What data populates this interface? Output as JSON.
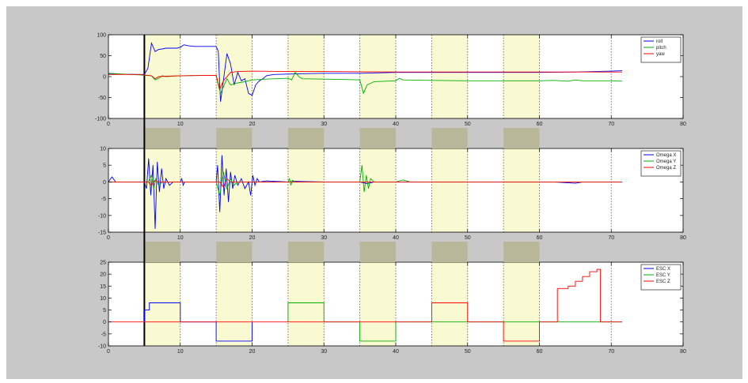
{
  "colors": {
    "figure_bg": "#c8c8c8",
    "axes_bg": "#ffffff",
    "highlight": "#fafad2",
    "blue": "#0000ff",
    "green": "#00b000",
    "red": "#ff0000"
  },
  "chart_data": [
    {
      "type": "line",
      "title": "",
      "xlabel": "",
      "ylabel": "",
      "xlim": [
        0,
        80
      ],
      "ylim": [
        -100,
        100
      ],
      "xticks": [
        0,
        10,
        20,
        30,
        40,
        50,
        60,
        70,
        80
      ],
      "yticks": [
        -100,
        -50,
        0,
        50,
        100
      ],
      "grid": "vertical-dotted",
      "legend_position": "top-right",
      "highlight_bands": [
        [
          5,
          10
        ],
        [
          15,
          20
        ],
        [
          25,
          30
        ],
        [
          35,
          40
        ],
        [
          45,
          50
        ],
        [
          55,
          60
        ]
      ],
      "marker_line_x": 5,
      "series": [
        {
          "name": "roll",
          "color": "#0000ff",
          "points": [
            [
              0,
              6
            ],
            [
              4.5,
              5
            ],
            [
              5,
              5
            ],
            [
              5.5,
              20
            ],
            [
              6,
              80
            ],
            [
              6.5,
              60
            ],
            [
              7,
              65
            ],
            [
              7.5,
              66
            ],
            [
              8,
              68
            ],
            [
              8.5,
              68
            ],
            [
              9,
              68
            ],
            [
              9.5,
              68
            ],
            [
              10,
              70
            ],
            [
              10.5,
              76
            ],
            [
              11,
              74
            ],
            [
              12,
              72
            ],
            [
              14,
              72
            ],
            [
              15,
              72
            ],
            [
              15.3,
              60
            ],
            [
              15.6,
              -60
            ],
            [
              16,
              -10
            ],
            [
              16.5,
              55
            ],
            [
              17,
              30
            ],
            [
              17.5,
              -20
            ],
            [
              18,
              10
            ],
            [
              18.5,
              -10
            ],
            [
              19,
              -5
            ],
            [
              19.5,
              -40
            ],
            [
              20,
              -45
            ],
            [
              20.5,
              -20
            ],
            [
              21,
              -10
            ],
            [
              21.5,
              -5
            ],
            [
              22,
              2
            ],
            [
              23,
              5
            ],
            [
              25,
              6
            ],
            [
              27,
              7
            ],
            [
              30,
              8
            ],
            [
              35,
              8
            ],
            [
              38,
              9
            ],
            [
              40,
              10
            ],
            [
              50,
              10
            ],
            [
              60,
              10
            ],
            [
              65,
              11
            ],
            [
              70,
              13
            ],
            [
              71.5,
              14
            ]
          ]
        },
        {
          "name": "pitch",
          "color": "#00b000",
          "points": [
            [
              0,
              8
            ],
            [
              4.5,
              4
            ],
            [
              5,
              3
            ],
            [
              6,
              2
            ],
            [
              6.5,
              -8
            ],
            [
              7,
              -4
            ],
            [
              7.5,
              2
            ],
            [
              8,
              0
            ],
            [
              10,
              2
            ],
            [
              15,
              3
            ],
            [
              15.3,
              -20
            ],
            [
              15.6,
              -40
            ],
            [
              16,
              -25
            ],
            [
              16.5,
              -5
            ],
            [
              17,
              -20
            ],
            [
              18,
              -15
            ],
            [
              19,
              -12
            ],
            [
              20,
              -8
            ],
            [
              22,
              -6
            ],
            [
              25,
              -4
            ],
            [
              25.5,
              -8
            ],
            [
              26,
              10
            ],
            [
              26.5,
              0
            ],
            [
              27,
              -5
            ],
            [
              30,
              -6
            ],
            [
              33,
              -7
            ],
            [
              35,
              -8
            ],
            [
              35.5,
              -40
            ],
            [
              36,
              -20
            ],
            [
              37,
              -12
            ],
            [
              40,
              -10
            ],
            [
              40.5,
              -4
            ],
            [
              41,
              -8
            ],
            [
              45,
              -9
            ],
            [
              50,
              -10
            ],
            [
              55,
              -10
            ],
            [
              60,
              -10
            ],
            [
              62,
              -9
            ],
            [
              64,
              -11
            ],
            [
              65,
              -8
            ],
            [
              66,
              -10
            ],
            [
              70,
              -10
            ],
            [
              71.5,
              -11
            ]
          ]
        },
        {
          "name": "yaw",
          "color": "#ff0000",
          "points": [
            [
              0,
              5
            ],
            [
              4.5,
              5
            ],
            [
              5,
              4
            ],
            [
              6,
              2
            ],
            [
              6.5,
              -5
            ],
            [
              7,
              0
            ],
            [
              8,
              1
            ],
            [
              10,
              2
            ],
            [
              15,
              3
            ],
            [
              15.5,
              -30
            ],
            [
              16,
              -10
            ],
            [
              17,
              10
            ],
            [
              18,
              12
            ],
            [
              20,
              13
            ],
            [
              25,
              12
            ],
            [
              30,
              12
            ],
            [
              40,
              11
            ],
            [
              50,
              11
            ],
            [
              60,
              11
            ],
            [
              70,
              11
            ],
            [
              71.5,
              11
            ]
          ]
        }
      ]
    },
    {
      "type": "line",
      "title": "",
      "xlabel": "",
      "ylabel": "",
      "xlim": [
        0,
        80
      ],
      "ylim": [
        -15,
        10
      ],
      "xticks": [
        0,
        10,
        20,
        30,
        40,
        50,
        60,
        70,
        80
      ],
      "yticks": [
        -15,
        -10,
        -5,
        0,
        5,
        10
      ],
      "grid": "vertical-dotted",
      "legend_position": "top-right",
      "highlight_bands": [
        [
          5,
          10
        ],
        [
          15,
          20
        ],
        [
          25,
          30
        ],
        [
          35,
          40
        ],
        [
          45,
          50
        ],
        [
          55,
          60
        ]
      ],
      "marker_line_x": 5,
      "series": [
        {
          "name": "Omega X",
          "color": "#0000ff",
          "points": [
            [
              0,
              0
            ],
            [
              0.5,
              1.5
            ],
            [
              1,
              0
            ],
            [
              4.5,
              0
            ],
            [
              5,
              0
            ],
            [
              5.3,
              -2
            ],
            [
              5.6,
              7
            ],
            [
              5.9,
              -4
            ],
            [
              6.2,
              5
            ],
            [
              6.5,
              -14
            ],
            [
              6.8,
              6
            ],
            [
              7.1,
              -3
            ],
            [
              7.4,
              4
            ],
            [
              7.7,
              -2
            ],
            [
              8,
              1
            ],
            [
              8.5,
              -1
            ],
            [
              9,
              0
            ],
            [
              10,
              0
            ],
            [
              10.2,
              1
            ],
            [
              10.4,
              -1
            ],
            [
              10.6,
              0
            ],
            [
              15,
              0
            ],
            [
              15.2,
              5
            ],
            [
              15.5,
              -9
            ],
            [
              15.8,
              8
            ],
            [
              16.1,
              -4
            ],
            [
              16.4,
              4
            ],
            [
              16.7,
              -6
            ],
            [
              17,
              3
            ],
            [
              17.3,
              -2
            ],
            [
              17.6,
              2
            ],
            [
              18,
              -1
            ],
            [
              18.5,
              1
            ],
            [
              19,
              -2
            ],
            [
              19.5,
              0
            ],
            [
              19.8,
              -4
            ],
            [
              20.1,
              2
            ],
            [
              20.4,
              -1
            ],
            [
              20.7,
              1
            ],
            [
              21,
              0
            ],
            [
              22,
              0.3
            ],
            [
              25,
              0
            ],
            [
              26,
              0.2
            ],
            [
              30,
              0
            ],
            [
              35,
              0
            ],
            [
              36,
              -0.5
            ],
            [
              37,
              0
            ],
            [
              40,
              0
            ],
            [
              50,
              0
            ],
            [
              62,
              0
            ],
            [
              65,
              -0.4
            ],
            [
              66,
              0
            ],
            [
              71.5,
              0
            ]
          ]
        },
        {
          "name": "Omega Y",
          "color": "#00b000",
          "points": [
            [
              0,
              0
            ],
            [
              4.5,
              0
            ],
            [
              5.5,
              0
            ],
            [
              6,
              2
            ],
            [
              6.3,
              -2
            ],
            [
              6.6,
              1
            ],
            [
              7,
              -1
            ],
            [
              7.5,
              0
            ],
            [
              10,
              0
            ],
            [
              15,
              0
            ],
            [
              15.5,
              -4
            ],
            [
              16,
              3
            ],
            [
              16.5,
              -2
            ],
            [
              17,
              1
            ],
            [
              17.5,
              -1
            ],
            [
              18,
              0
            ],
            [
              20,
              0
            ],
            [
              25,
              0
            ],
            [
              25.2,
              1
            ],
            [
              25.4,
              -1
            ],
            [
              25.6,
              0.5
            ],
            [
              26,
              0
            ],
            [
              35,
              0
            ],
            [
              35.3,
              5
            ],
            [
              35.6,
              -3
            ],
            [
              35.9,
              2
            ],
            [
              36.2,
              -2
            ],
            [
              36.5,
              1
            ],
            [
              37,
              0
            ],
            [
              40,
              0
            ],
            [
              41,
              0.6
            ],
            [
              42,
              0
            ],
            [
              71.5,
              0
            ]
          ]
        },
        {
          "name": "Omega Z",
          "color": "#ff0000",
          "points": [
            [
              0,
              0
            ],
            [
              5.5,
              0
            ],
            [
              6,
              -1
            ],
            [
              6.5,
              0.5
            ],
            [
              7,
              0
            ],
            [
              15.5,
              0
            ],
            [
              16,
              -1.5
            ],
            [
              16.5,
              1
            ],
            [
              17,
              0
            ],
            [
              71.5,
              0
            ]
          ]
        }
      ]
    },
    {
      "type": "line",
      "title": "",
      "xlabel": "",
      "ylabel": "",
      "xlim": [
        0,
        80
      ],
      "ylim": [
        -10,
        25
      ],
      "xticks": [
        0,
        10,
        20,
        30,
        40,
        50,
        60,
        70,
        80
      ],
      "yticks": [
        -10,
        -5,
        0,
        5,
        10,
        15,
        20,
        25
      ],
      "grid": "vertical-dotted",
      "legend_position": "top-right",
      "highlight_bands": [
        [
          5,
          10
        ],
        [
          15,
          20
        ],
        [
          25,
          30
        ],
        [
          35,
          40
        ],
        [
          45,
          50
        ],
        [
          55,
          60
        ]
      ],
      "marker_line_x": 5,
      "series": [
        {
          "name": "ESC X",
          "color": "#0000ff",
          "points": [
            [
              5,
              0
            ],
            [
              5,
              5
            ],
            [
              5.7,
              5
            ],
            [
              5.7,
              8
            ],
            [
              10,
              8
            ],
            [
              10,
              0
            ],
            [
              15,
              0
            ],
            [
              15,
              -8
            ],
            [
              20,
              -8
            ],
            [
              20,
              0
            ]
          ]
        },
        {
          "name": "ESC Y",
          "color": "#00b000",
          "points": [
            [
              25,
              0
            ],
            [
              25,
              8
            ],
            [
              30,
              8
            ],
            [
              30,
              0
            ],
            [
              35,
              0
            ],
            [
              35,
              -8
            ],
            [
              40,
              -8
            ],
            [
              40,
              0
            ],
            [
              71.5,
              0
            ]
          ]
        },
        {
          "name": "ESC Z",
          "color": "#ff0000",
          "points": [
            [
              0,
              0
            ],
            [
              45,
              0
            ],
            [
              45,
              8
            ],
            [
              50,
              8
            ],
            [
              50,
              0
            ],
            [
              55,
              0
            ],
            [
              55,
              -8
            ],
            [
              60,
              -8
            ],
            [
              60,
              0
            ],
            [
              62.5,
              0
            ],
            [
              62.5,
              14
            ],
            [
              64,
              14
            ],
            [
              64,
              15
            ],
            [
              65,
              15
            ],
            [
              65,
              17
            ],
            [
              66,
              17
            ],
            [
              66,
              19
            ],
            [
              67,
              19
            ],
            [
              67,
              21
            ],
            [
              68,
              21
            ],
            [
              68,
              22
            ],
            [
              68.5,
              22
            ],
            [
              68.5,
              0
            ],
            [
              71.5,
              0
            ]
          ]
        }
      ]
    }
  ]
}
